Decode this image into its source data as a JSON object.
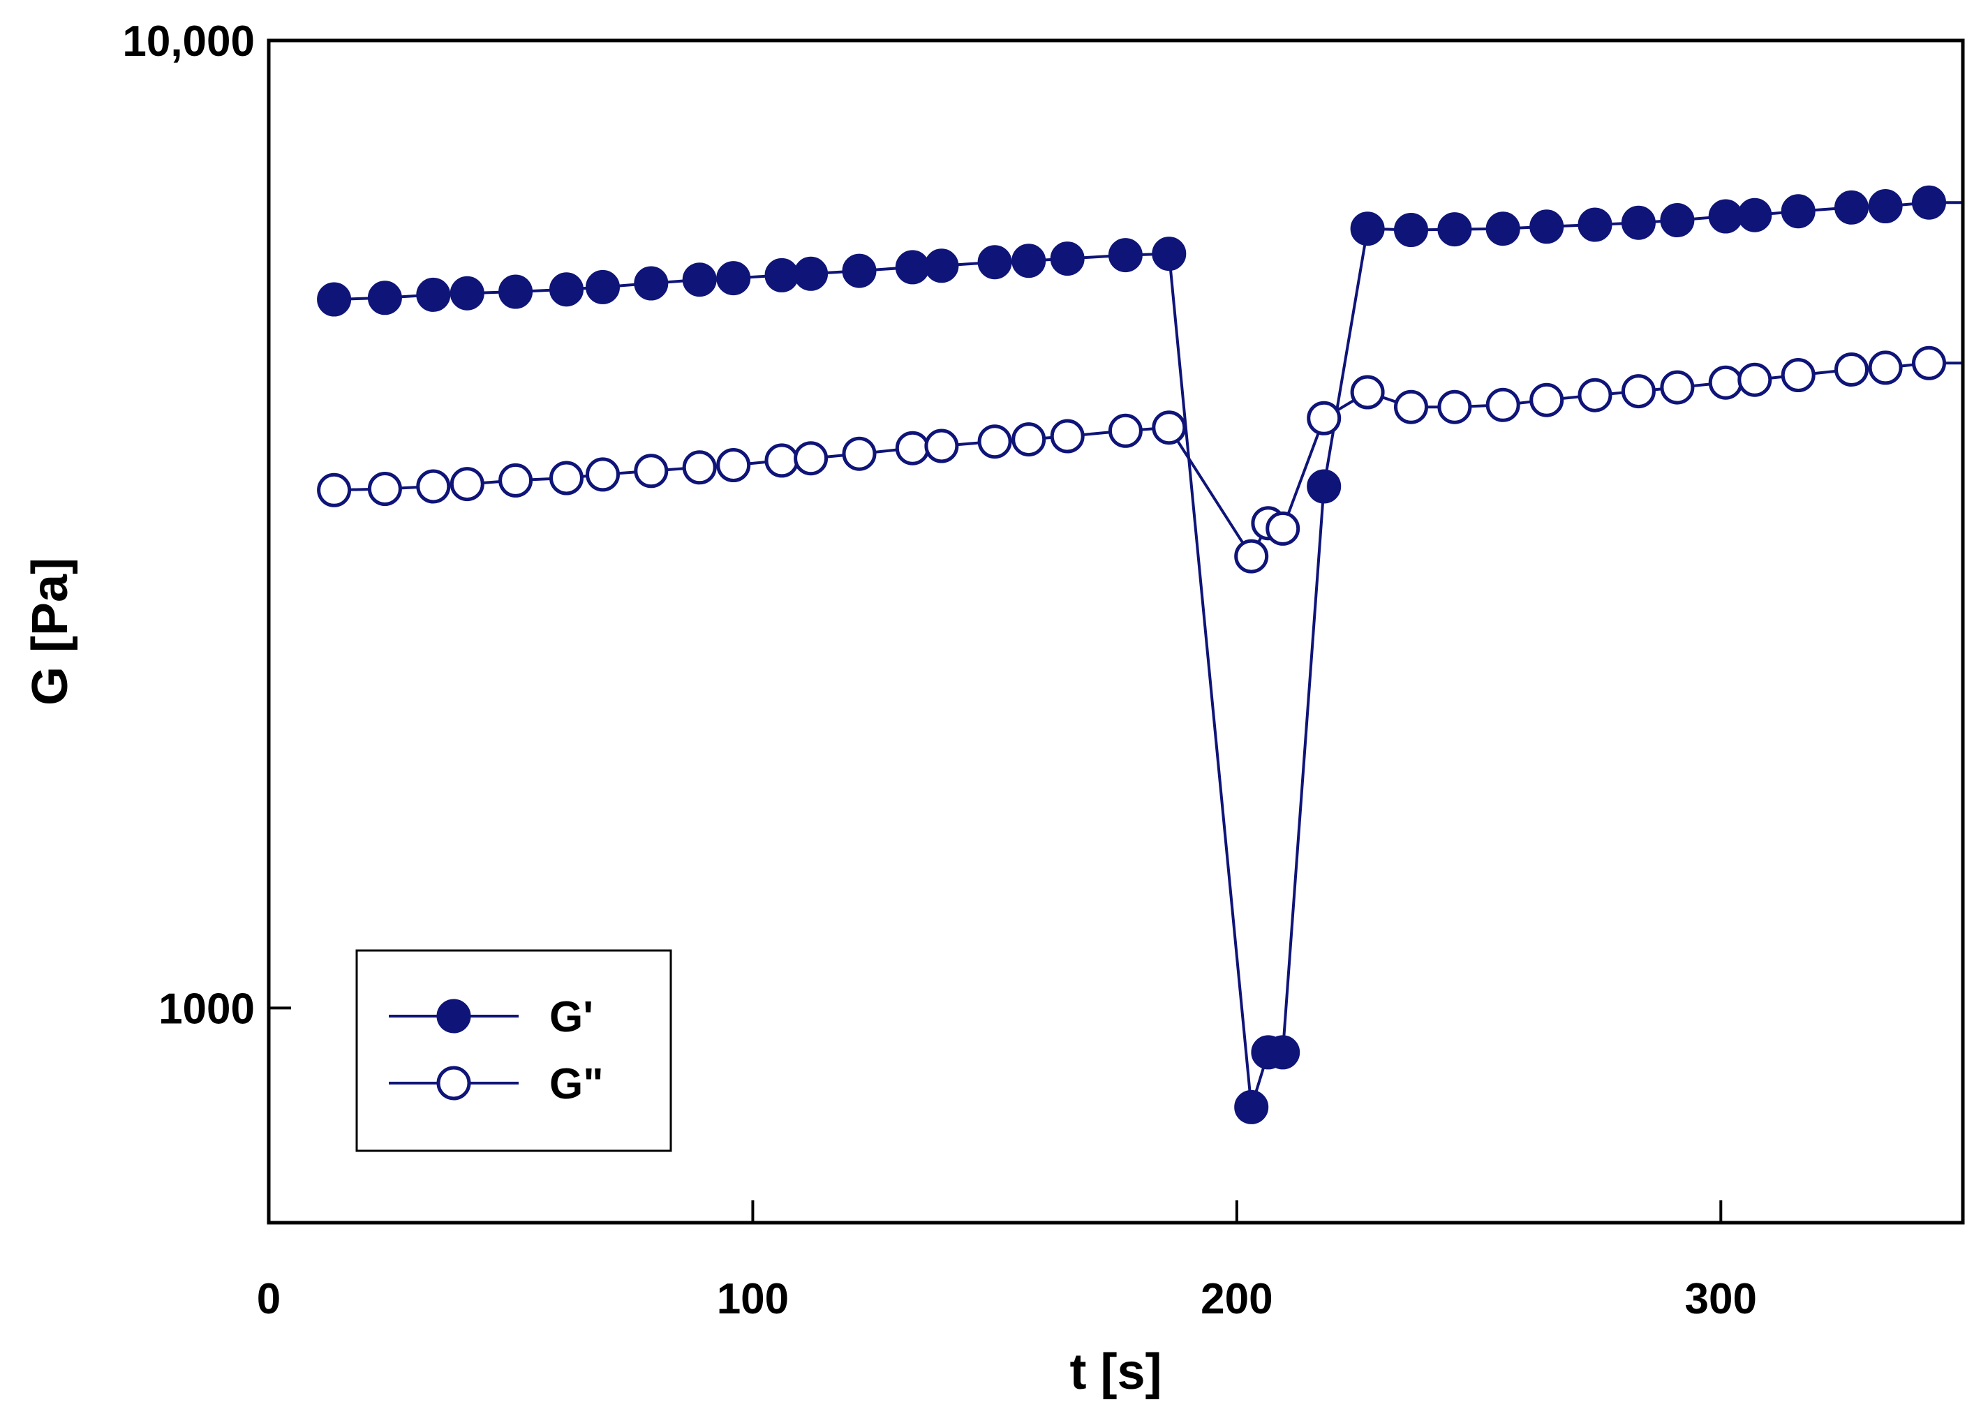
{
  "chart_data": {
    "type": "scatter",
    "xlabel": "t [s]",
    "ylabel": "G [Pa]",
    "xlim": [
      0,
      350
    ],
    "ylim": [
      600,
      10000
    ],
    "yscale": "log",
    "xticks": [
      0,
      100,
      200,
      300
    ],
    "xtick_labels": [
      "0",
      "100",
      "200",
      "300"
    ],
    "yticks": [
      1000,
      10000
    ],
    "ytick_labels": [
      "1000",
      "10,000"
    ],
    "grid": false,
    "legend_position": "bottom-left",
    "line_color": "#0f1478",
    "series": [
      {
        "name": "G'",
        "marker": "filled-circle",
        "x": [
          13.5,
          24,
          34,
          41,
          51,
          61.5,
          69,
          79,
          89,
          96,
          106,
          112,
          122,
          133,
          139,
          150,
          157,
          165,
          177,
          186,
          203,
          206.5,
          209.5,
          218,
          227,
          236,
          245,
          255,
          264,
          274,
          283,
          291,
          301,
          307,
          316,
          327,
          334,
          343
        ],
        "y": [
          5400,
          5420,
          5460,
          5480,
          5500,
          5530,
          5560,
          5610,
          5660,
          5680,
          5720,
          5740,
          5780,
          5830,
          5850,
          5900,
          5920,
          5950,
          6000,
          6020,
          790,
          900,
          900,
          3460,
          6390,
          6370,
          6380,
          6390,
          6420,
          6450,
          6480,
          6520,
          6580,
          6600,
          6660,
          6720,
          6740,
          6800
        ]
      },
      {
        "name": "G\"",
        "marker": "open-circle",
        "x": [
          13.5,
          24,
          34,
          41,
          51,
          61.5,
          69,
          79,
          89,
          96,
          106,
          112,
          122,
          133,
          139,
          150,
          157,
          165,
          177,
          186,
          203,
          206.5,
          209.5,
          218,
          227,
          236,
          245,
          255,
          264,
          274,
          283,
          291,
          301,
          307,
          316,
          327,
          334,
          343
        ],
        "y": [
          3430,
          3440,
          3460,
          3480,
          3510,
          3530,
          3560,
          3590,
          3620,
          3640,
          3680,
          3700,
          3740,
          3790,
          3810,
          3850,
          3870,
          3900,
          3950,
          3980,
          2930,
          3170,
          3130,
          4070,
          4330,
          4180,
          4180,
          4200,
          4250,
          4300,
          4340,
          4380,
          4430,
          4460,
          4510,
          4570,
          4590,
          4640
        ]
      }
    ]
  },
  "legend": {
    "items": [
      "G'",
      "G\""
    ]
  }
}
